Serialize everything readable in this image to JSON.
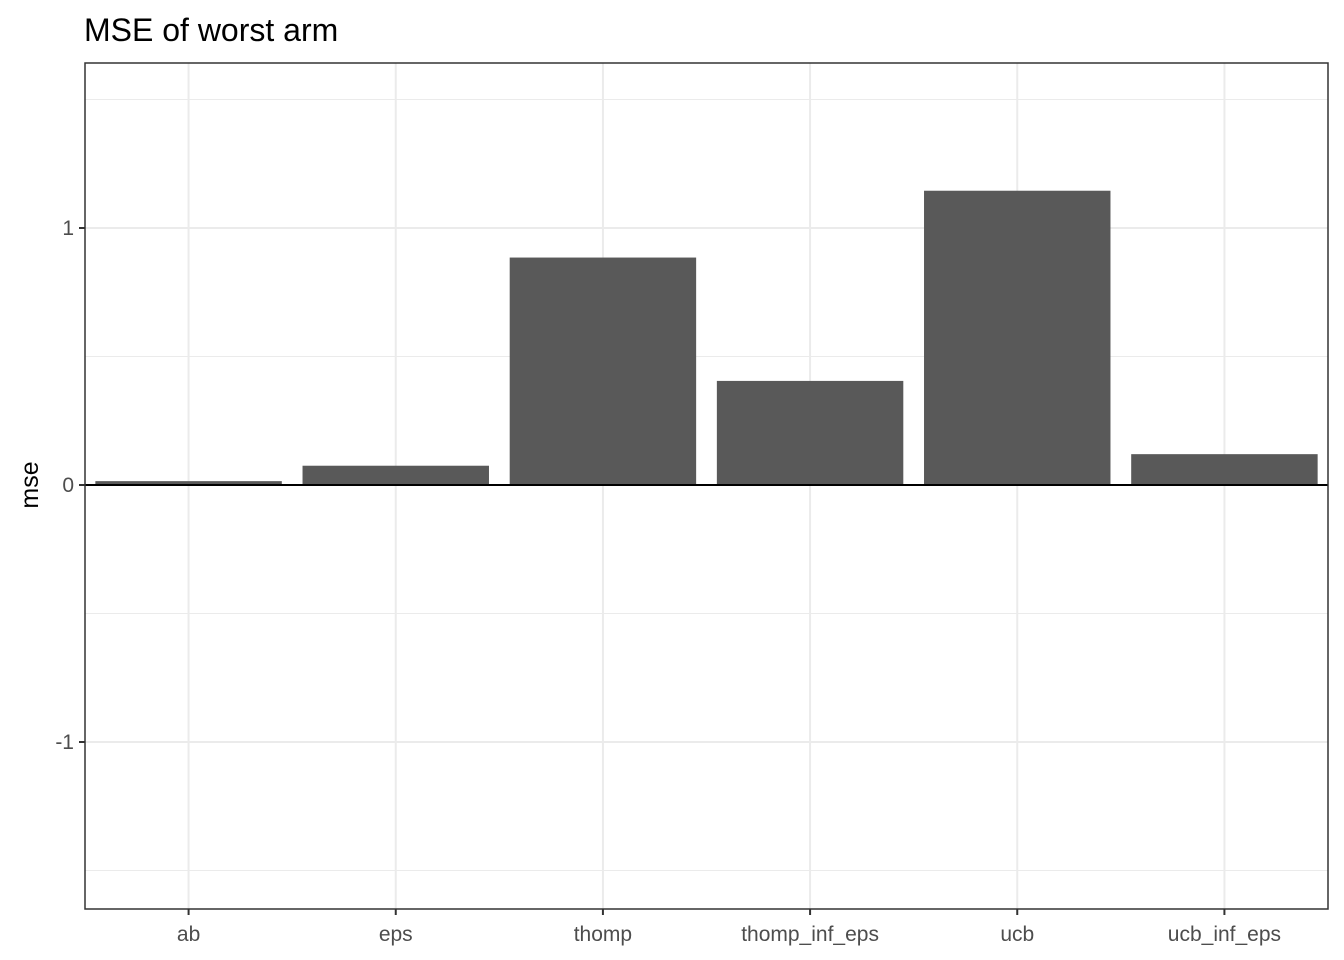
{
  "chart_data": {
    "type": "bar",
    "title": "MSE of worst arm",
    "xlabel": "",
    "ylabel": "mse",
    "categories": [
      "ab",
      "eps",
      "thomp",
      "thomp_inf_eps",
      "ucb",
      "ucb_inf_eps"
    ],
    "values": [
      0.015,
      0.075,
      0.885,
      0.405,
      1.145,
      0.12
    ],
    "ylim": [
      -1.65,
      1.65
    ],
    "yticks": [
      -1,
      0,
      1
    ],
    "ytick_labels": [
      "-1",
      "0",
      "1"
    ],
    "grid": true,
    "zero_line": true,
    "colors": {
      "bar": "#595959",
      "grid": "#ebebeb",
      "panel_border": "#333333",
      "zero_line": "#000000",
      "background": "#ffffff"
    }
  }
}
